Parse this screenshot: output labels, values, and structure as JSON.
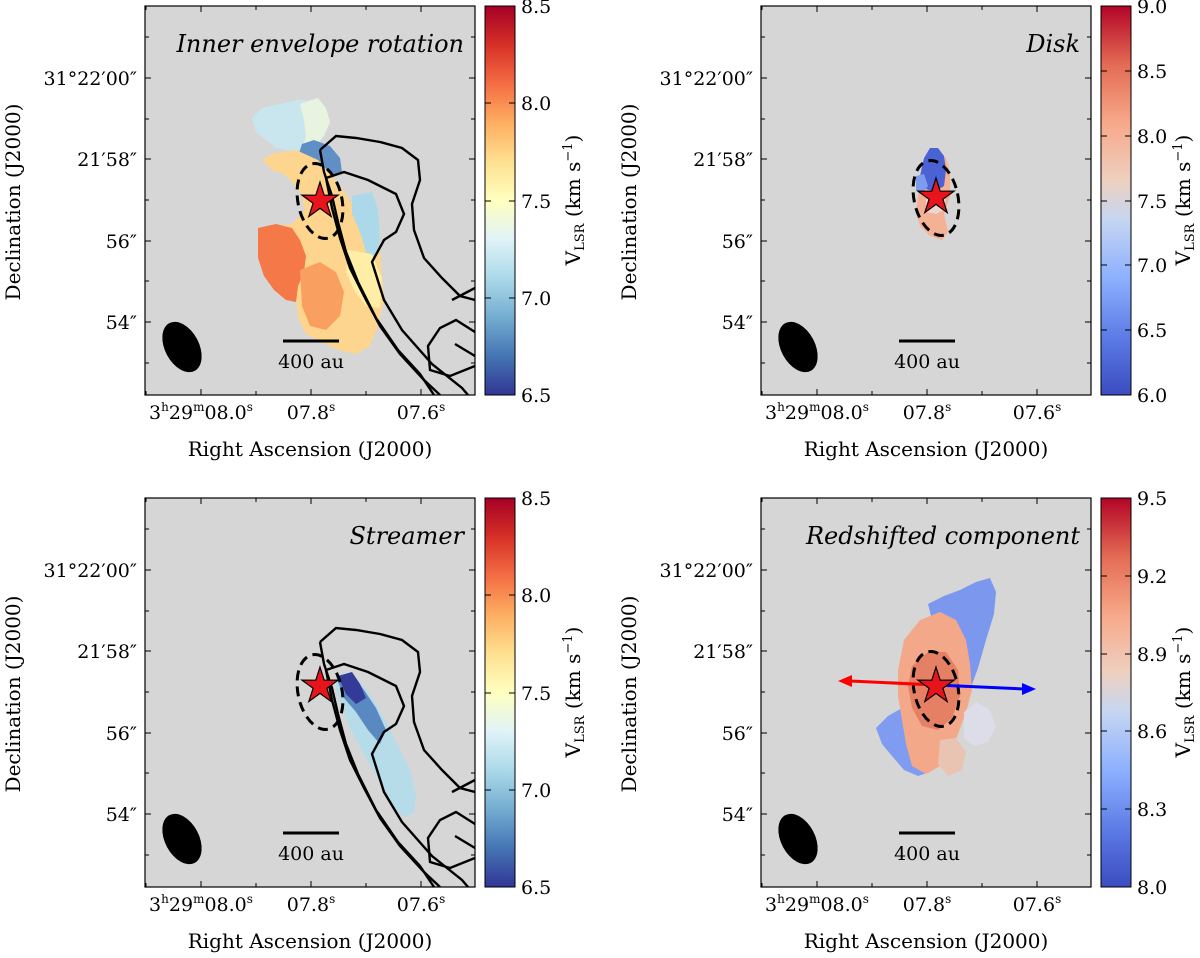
{
  "figure": {
    "colors": {
      "background": "#d6d6d6",
      "line": "#000000",
      "star_fill": "#e8141c",
      "arrow_red": "#ff0000",
      "arrow_blue": "#0000ff"
    },
    "axis_labels": {
      "ra": "Right Ascension (J2000)",
      "dec": "Declination (J2000)",
      "cbar": "V",
      "cbar_sub": "LSR",
      "cbar_unit": " (km s",
      "cbar_exp": "−1",
      "cbar_close": ")"
    },
    "dec_ticks": [
      {
        "main": "31°22′00″",
        "value": "22:00"
      },
      {
        "main": "21′58″",
        "value": "21:58"
      },
      {
        "main": "56″",
        "value": "21:56"
      },
      {
        "main": "54″",
        "value": "21:54"
      }
    ],
    "ra_ticks": [
      {
        "h": "3",
        "hs": "h",
        "m": "29",
        "ms": "m",
        "s": "08.0",
        "ss": "s"
      },
      {
        "s": "07.8",
        "ss": "s"
      },
      {
        "s": "07.6",
        "ss": "s"
      }
    ],
    "scalebar_label": "400 au"
  },
  "chart_data": [
    {
      "type": "heatmap",
      "title": "Inner envelope rotation",
      "xlabel": "Right Ascension (J2000)",
      "ylabel": "Declination (J2000)",
      "colorbar": {
        "label": "VLSR (km s−1)",
        "colormap": "RdYlBu_r",
        "range": [
          6.5,
          8.5
        ],
        "ticks": [
          "8.5",
          "8.0",
          "7.5",
          "7.0",
          "6.5"
        ]
      },
      "scalebar": "400 au",
      "overlays": [
        "streamer contours",
        "disk ellipse",
        "protostar marker",
        "beam ellipse"
      ]
    },
    {
      "type": "heatmap",
      "title": "Disk",
      "xlabel": "Right Ascension (J2000)",
      "ylabel": "Declination (J2000)",
      "colorbar": {
        "label": "VLSR (km s−1)",
        "colormap": "coolwarm",
        "range": [
          6.0,
          9.0
        ],
        "ticks": [
          "9.0",
          "8.5",
          "8.0",
          "7.5",
          "7.0",
          "6.5",
          "6.0"
        ]
      },
      "scalebar": "400 au",
      "overlays": [
        "disk ellipse",
        "protostar marker",
        "beam ellipse"
      ]
    },
    {
      "type": "heatmap",
      "title": "Streamer",
      "xlabel": "Right Ascension (J2000)",
      "ylabel": "Declination (J2000)",
      "colorbar": {
        "label": "VLSR (km s−1)",
        "colormap": "RdYlBu_r",
        "range": [
          6.5,
          8.5
        ],
        "ticks": [
          "8.5",
          "8.0",
          "7.5",
          "7.0",
          "6.5"
        ]
      },
      "scalebar": "400 au",
      "overlays": [
        "streamer contours",
        "disk ellipse",
        "protostar marker",
        "beam ellipse"
      ]
    },
    {
      "type": "heatmap",
      "title": "Redshifted component",
      "xlabel": "Right Ascension (J2000)",
      "ylabel": "Declination (J2000)",
      "colorbar": {
        "label": "VLSR (km s−1)",
        "colormap": "coolwarm",
        "range": [
          8.0,
          9.5
        ],
        "ticks": [
          "9.5",
          "9.2",
          "8.9",
          "8.6",
          "8.3",
          "8.0"
        ]
      },
      "scalebar": "400 au",
      "overlays": [
        "outflow arrows (red east, blue west)",
        "disk ellipse",
        "protostar marker",
        "beam ellipse"
      ]
    }
  ]
}
